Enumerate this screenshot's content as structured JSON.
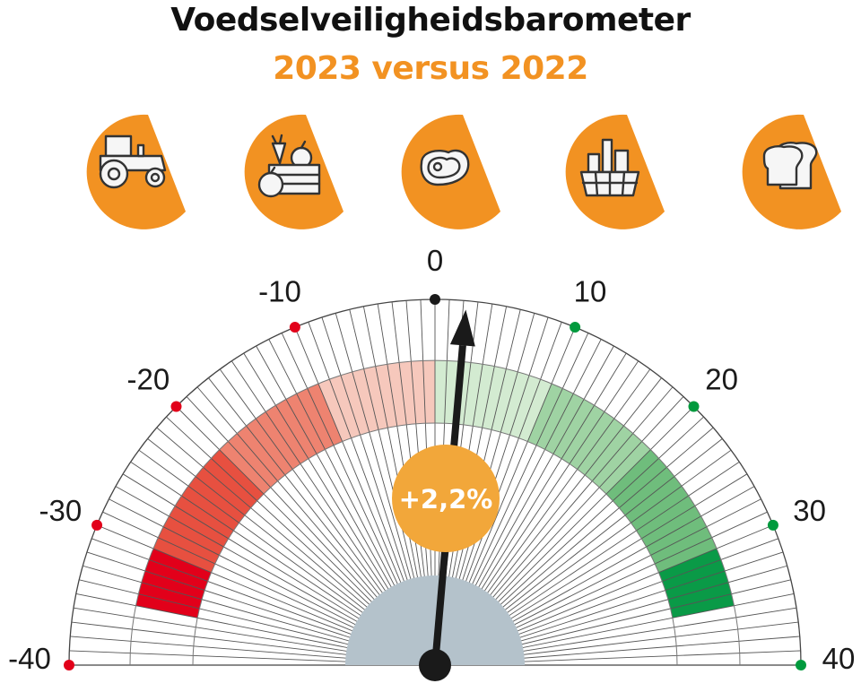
{
  "header": {
    "title": "Voedselveiligheidsbarometer",
    "subtitle": "2023 versus 2022"
  },
  "categories": [
    {
      "icon": "tractor-icon"
    },
    {
      "icon": "fruit-vegetable-crate-icon"
    },
    {
      "icon": "meat-steak-icon"
    },
    {
      "icon": "grocery-basket-icon"
    },
    {
      "icon": "bread-slices-icon"
    }
  ],
  "chart_data": {
    "type": "gauge",
    "range": [
      -40,
      40
    ],
    "ticks": [
      {
        "value": -40,
        "label": "-40",
        "color": "#e2001a"
      },
      {
        "value": -30,
        "label": "-30",
        "color": "#e2001a"
      },
      {
        "value": -20,
        "label": "-20",
        "color": "#e2001a"
      },
      {
        "value": -10,
        "label": "-10",
        "color": "#e2001a"
      },
      {
        "value": 0,
        "label": "0",
        "color": "#1a1a1a"
      },
      {
        "value": 10,
        "label": "10",
        "color": "#009a3d"
      },
      {
        "value": 20,
        "label": "20",
        "color": "#009a3d"
      },
      {
        "value": 30,
        "label": "30",
        "color": "#009a3d"
      },
      {
        "value": 40,
        "label": "40",
        "color": "#009a3d"
      }
    ],
    "bands": [
      {
        "from": -35,
        "to": -30,
        "color": "#e2001a"
      },
      {
        "from": -30,
        "to": -20,
        "color": "#e75040"
      },
      {
        "from": -20,
        "to": -10,
        "color": "#ee8370"
      },
      {
        "from": -10,
        "to": 0,
        "color": "#f6c8bc"
      },
      {
        "from": 0,
        "to": 10,
        "color": "#d3ebd1"
      },
      {
        "from": 10,
        "to": 20,
        "color": "#9fd3a3"
      },
      {
        "from": 20,
        "to": 30,
        "color": "#6fbd7c"
      },
      {
        "from": 30,
        "to": 35,
        "color": "#0a9a47"
      }
    ],
    "value": 2.2,
    "value_label": "+2,2%"
  },
  "colors": {
    "accent": "#f29222",
    "value_circle": "#f2a73a",
    "hub": "#b4c2cb",
    "needle": "#1a1a1a"
  }
}
